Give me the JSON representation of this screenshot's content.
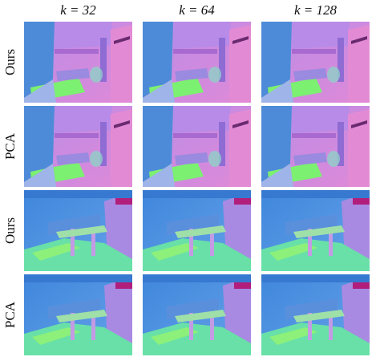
{
  "column_headers": [
    "k = 32",
    "k = 64",
    "k = 128"
  ],
  "row_labels": [
    "Ours",
    "PCA",
    "Ours",
    "PCA"
  ]
}
